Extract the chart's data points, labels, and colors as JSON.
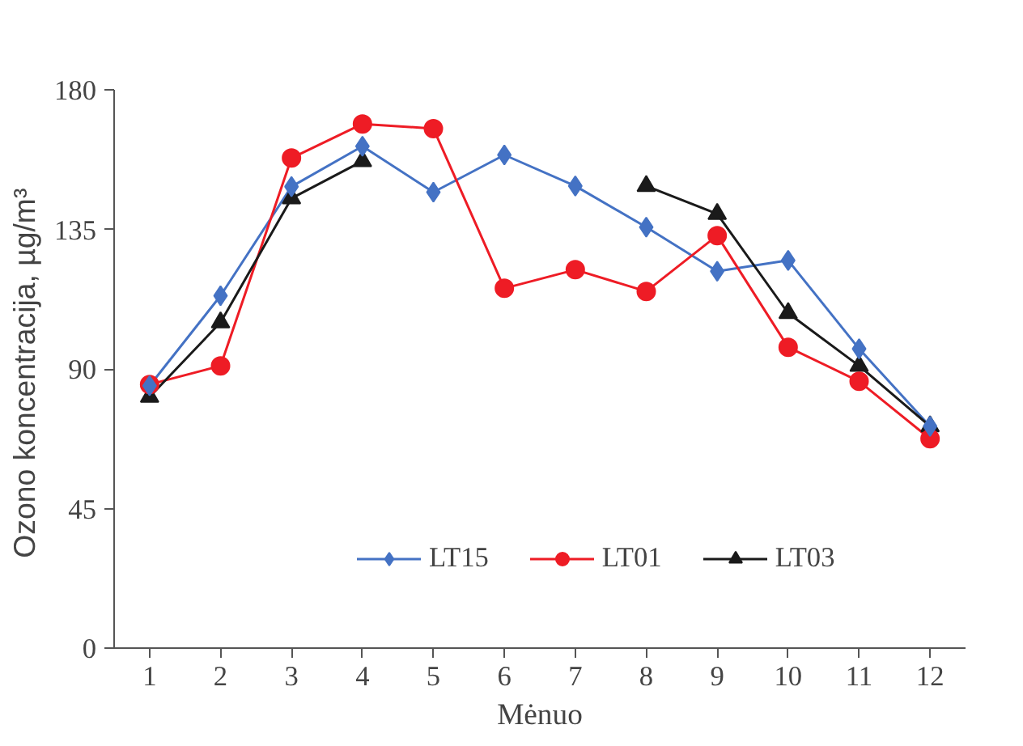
{
  "chart_data": {
    "type": "line",
    "xlabel": "Mėnuo",
    "ylabel": "Ozono koncentracija,  µg/m³",
    "x": [
      1,
      2,
      3,
      4,
      5,
      6,
      7,
      8,
      9,
      10,
      11,
      12
    ],
    "xlim": [
      0.5,
      12.5
    ],
    "xticks": [
      1,
      2,
      3,
      4,
      5,
      6,
      7,
      8,
      9,
      10,
      11,
      12
    ],
    "ylim": [
      0,
      180
    ],
    "yticks": [
      0,
      45,
      90,
      135,
      180
    ],
    "grid": false,
    "legend": "bottom",
    "series": [
      {
        "name": "LT15",
        "color": "#4472c4",
        "marker": "diamond",
        "values": [
          84.6,
          113.6,
          148.8,
          161.8,
          147,
          159,
          149,
          135.7,
          121.5,
          125,
          96.5,
          71.5
        ]
      },
      {
        "name": "LT01",
        "color": "#ee1c25",
        "marker": "circle",
        "values": [
          85,
          91,
          158,
          169,
          167.5,
          116,
          122,
          115,
          133,
          97,
          86,
          67.5
        ]
      },
      {
        "name": "LT03",
        "color": "#1a1a1a",
        "marker": "triangle",
        "values": [
          81,
          105,
          145,
          157,
          null,
          null,
          null,
          149,
          140,
          108,
          91,
          71.5
        ]
      }
    ]
  }
}
